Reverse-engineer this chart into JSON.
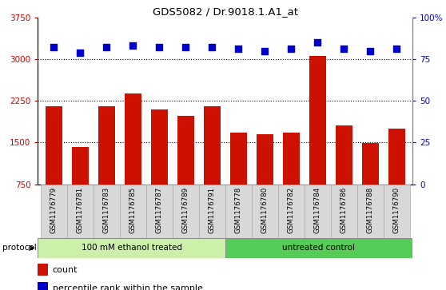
{
  "title": "GDS5082 / Dr.9018.1.A1_at",
  "samples": [
    "GSM1176779",
    "GSM1176781",
    "GSM1176783",
    "GSM1176785",
    "GSM1176787",
    "GSM1176789",
    "GSM1176791",
    "GSM1176778",
    "GSM1176780",
    "GSM1176782",
    "GSM1176784",
    "GSM1176786",
    "GSM1176788",
    "GSM1176790"
  ],
  "counts": [
    2150,
    1420,
    2150,
    2380,
    2100,
    1980,
    2150,
    1680,
    1650,
    1680,
    3050,
    1800,
    1490,
    1750
  ],
  "percentiles": [
    82,
    79,
    82,
    83,
    82,
    82,
    82,
    81,
    80,
    81,
    85,
    81,
    80,
    81
  ],
  "left_ylim": [
    750,
    3750
  ],
  "left_yticks": [
    750,
    1500,
    2250,
    3000,
    3750
  ],
  "right_ylim": [
    0,
    100
  ],
  "right_yticks": [
    0,
    25,
    50,
    75,
    100
  ],
  "right_yticklabels": [
    "0",
    "25",
    "50",
    "75",
    "100%"
  ],
  "bar_color": "#cc1100",
  "dot_color": "#0000cc",
  "bar_width": 0.65,
  "group1_label": "100 mM ethanol treated",
  "group2_label": "untreated control",
  "group1_count": 7,
  "group2_count": 7,
  "protocol_label": "protocol",
  "legend_count_label": "count",
  "legend_percentile_label": "percentile rank within the sample",
  "bg_color": "#d8d8d8",
  "group1_color": "#ccf0aa",
  "group2_color": "#55cc55",
  "dotted_lines": [
    1500,
    2250,
    3000
  ],
  "dot_size": 35,
  "left_tick_color": "#cc0000",
  "right_tick_color": "#0000cc"
}
